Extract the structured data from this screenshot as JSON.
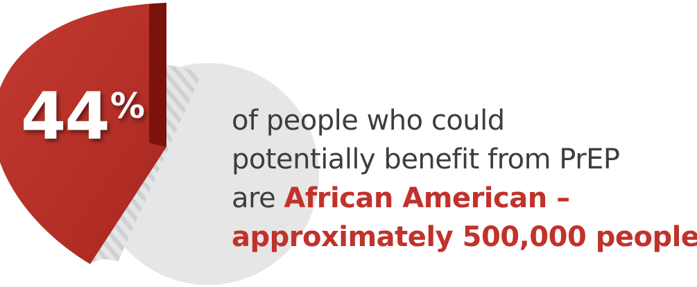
{
  "chart_data": {
    "type": "pie",
    "values": [
      44,
      56
    ],
    "value_label": "44",
    "percent_sign": "%",
    "colors": {
      "highlight": "#b8312a",
      "highlight_edge": "#7b120d",
      "remainder": "#e6e6e6",
      "remainder_stripe": "#cfd0d2"
    }
  },
  "caption": {
    "line1": "of people who could",
    "line2": "potentially benefit from PrEP",
    "line3_prefix": "are ",
    "line3_highlight": "African American –",
    "line4_highlight": "approximately 500,000 people",
    "line4_suffix": "…"
  },
  "colors": {
    "text": "#3d3d3d",
    "accent": "#c0322b"
  }
}
